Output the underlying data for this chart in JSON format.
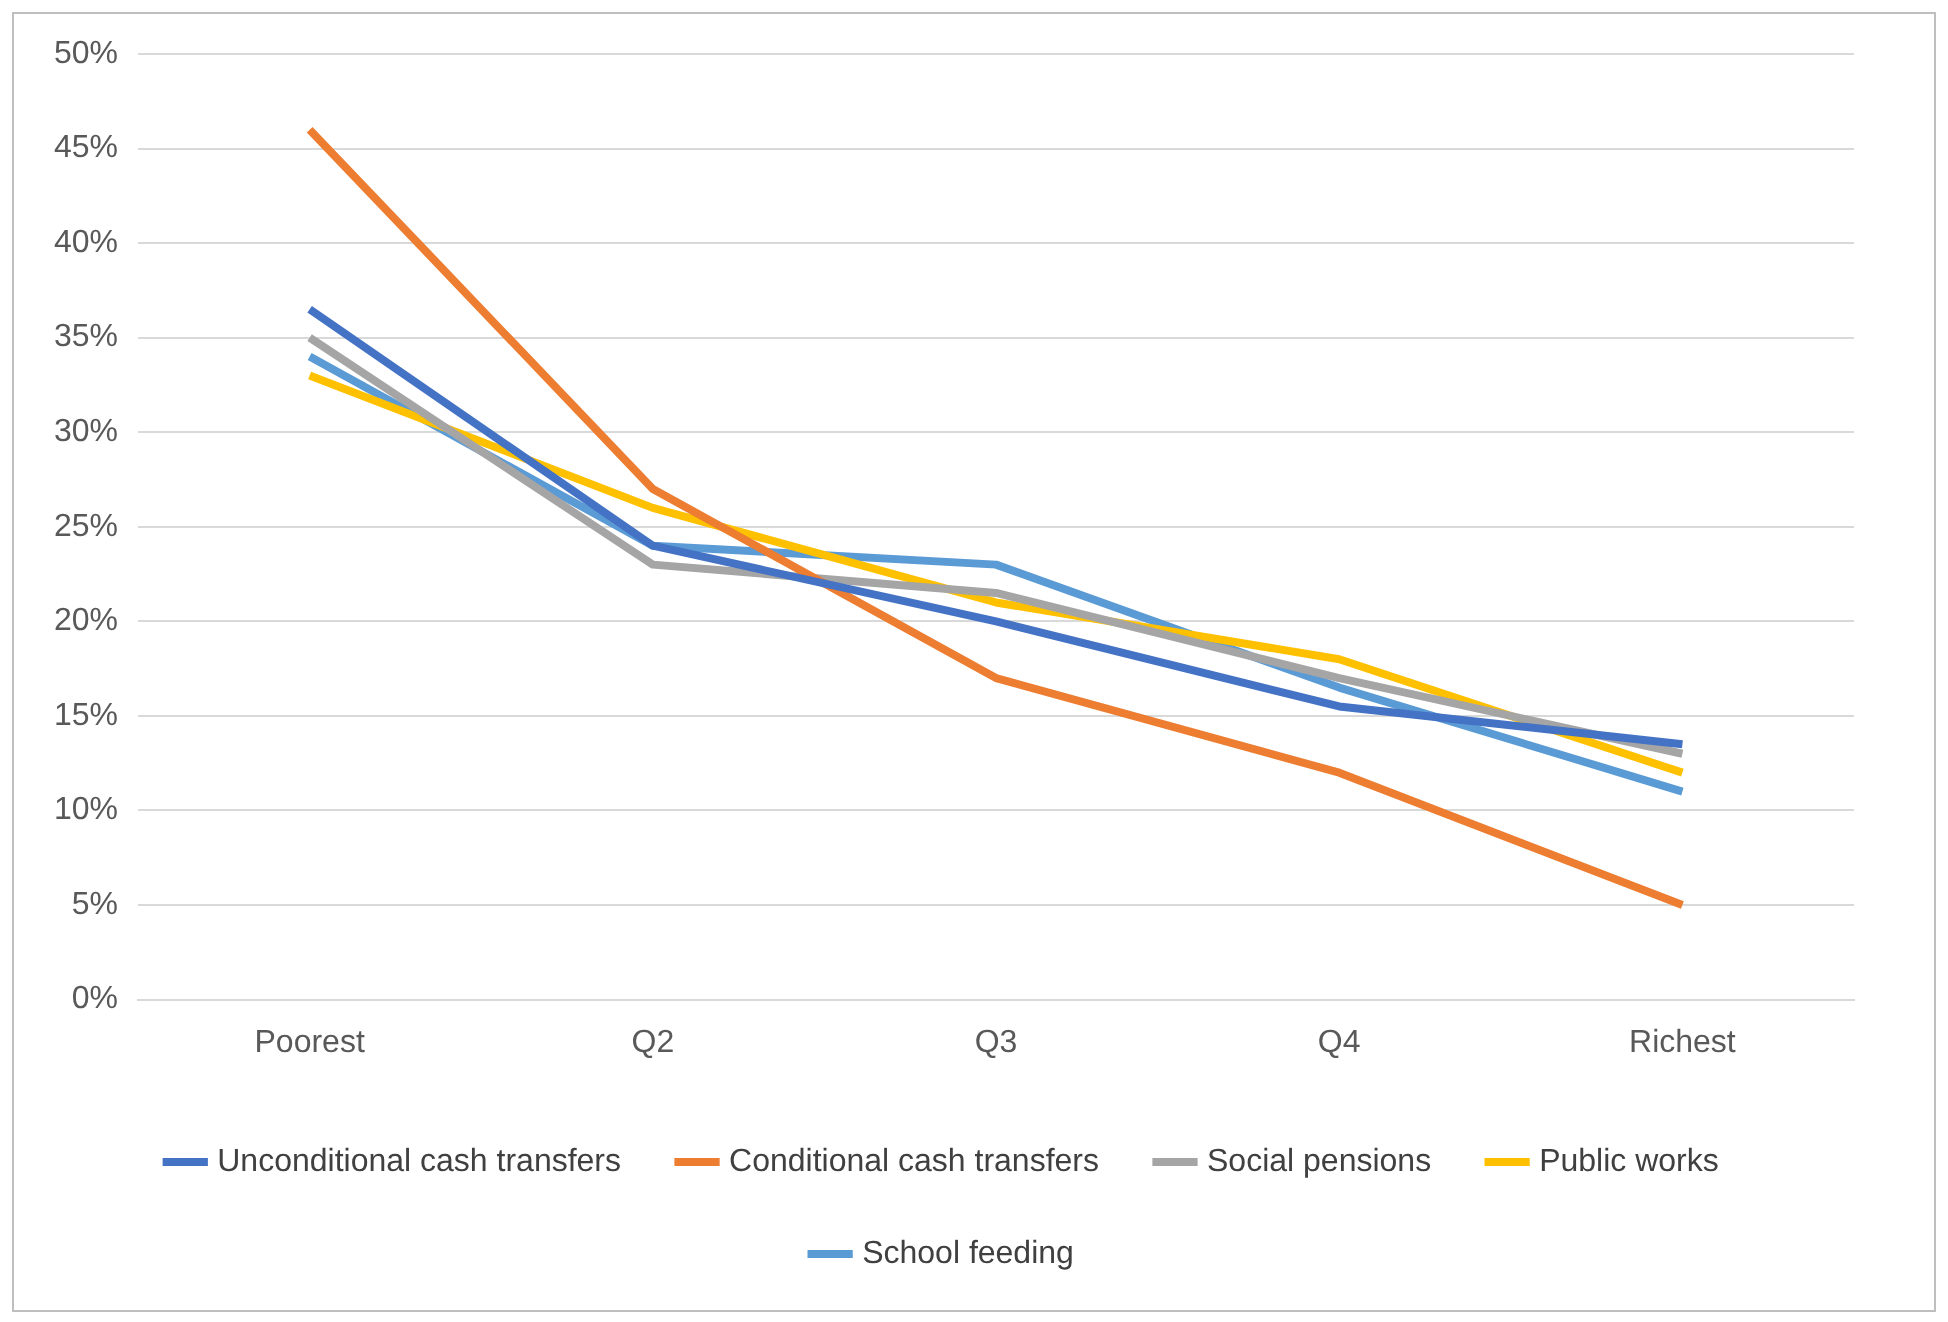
{
  "chart_data": {
    "type": "line",
    "categories": [
      "Poorest",
      "Q2",
      "Q3",
      "Q4",
      "Richest"
    ],
    "series": [
      {
        "name": "Unconditional cash transfers",
        "color": "#4472c4",
        "values": [
          36.5,
          24,
          20,
          15.5,
          13.5
        ]
      },
      {
        "name": "Conditional cash transfers",
        "color": "#ed7d31",
        "values": [
          46,
          27,
          17,
          12,
          5
        ]
      },
      {
        "name": "Social pensions",
        "color": "#a5a5a5",
        "values": [
          35,
          23,
          21.5,
          17,
          13
        ]
      },
      {
        "name": "Public works",
        "color": "#ffc000",
        "values": [
          33,
          26,
          21,
          18,
          12
        ]
      },
      {
        "name": "School feeding",
        "color": "#5b9bd5",
        "values": [
          34,
          24,
          23,
          16.5,
          11
        ]
      }
    ],
    "ylim": [
      0,
      50
    ],
    "yticks": [
      {
        "value": 0,
        "label": "0%"
      },
      {
        "value": 5,
        "label": "5%"
      },
      {
        "value": 10,
        "label": "10%"
      },
      {
        "value": 15,
        "label": "15%"
      },
      {
        "value": 20,
        "label": "20%"
      },
      {
        "value": 25,
        "label": "25%"
      },
      {
        "value": 30,
        "label": "30%"
      },
      {
        "value": 35,
        "label": "35%"
      },
      {
        "value": 40,
        "label": "40%"
      },
      {
        "value": 45,
        "label": "45%"
      },
      {
        "value": 50,
        "label": "50%"
      }
    ],
    "grid": "y",
    "legend": "bottom",
    "marker": "none",
    "line_style": "solid"
  }
}
